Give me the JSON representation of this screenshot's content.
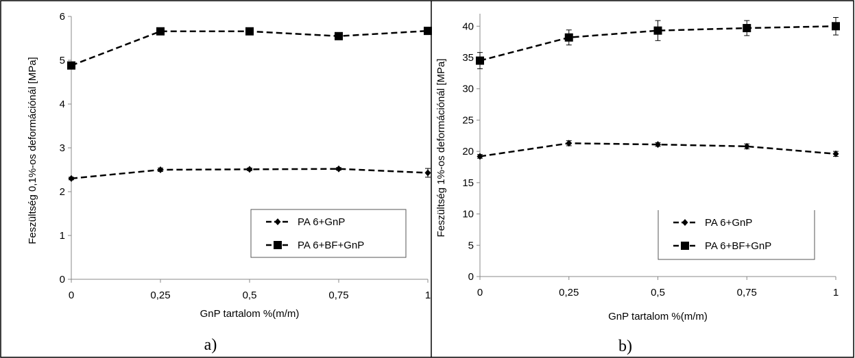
{
  "chart_data": [
    {
      "type": "line",
      "panel_label": "a)",
      "xlabel": "GnP tartalom %(m/m)",
      "ylabel": "Feszültség 0,1%-os deformációnál [MPa]",
      "x": [
        0,
        0.25,
        0.5,
        0.75,
        1
      ],
      "x_tick_labels": [
        "0",
        "0,25",
        "0,5",
        "0,75",
        "1"
      ],
      "y_ticks": [
        "0",
        "1",
        "2",
        "3",
        "4",
        "5",
        "6"
      ],
      "xlim": [
        0,
        1
      ],
      "ylim": [
        0,
        6
      ],
      "grid": false,
      "legend_position": "bottom-right",
      "series": [
        {
          "name": "PA 6+GnP",
          "marker": "diamond",
          "values": [
            2.3,
            2.5,
            2.51,
            2.52,
            2.43
          ],
          "errors": [
            0.03,
            0.04,
            0.03,
            0.03,
            0.1
          ]
        },
        {
          "name": "PA 6+BF+GnP",
          "marker": "square",
          "values": [
            4.88,
            5.66,
            5.66,
            5.55,
            5.67
          ],
          "errors": [
            0.05,
            0.03,
            0.03,
            0.04,
            0.04
          ]
        }
      ]
    },
    {
      "type": "line",
      "panel_label": "b)",
      "xlabel": "GnP tartalom %(m/m)",
      "ylabel": "Feszültség 1%-os deformációnál [MPa]",
      "x": [
        0,
        0.25,
        0.5,
        0.75,
        1
      ],
      "x_tick_labels": [
        "0",
        "0,25",
        "0,5",
        "0,75",
        "1"
      ],
      "y_ticks": [
        "0",
        "5",
        "10",
        "15",
        "20",
        "25",
        "30",
        "35",
        "40"
      ],
      "xlim": [
        0,
        1
      ],
      "ylim": [
        0,
        42
      ],
      "grid": false,
      "legend_position": "bottom-right",
      "series": [
        {
          "name": "PA 6+GnP",
          "marker": "diamond",
          "values": [
            19.2,
            21.3,
            21.1,
            20.8,
            19.6
          ],
          "errors": [
            0.3,
            0.4,
            0.3,
            0.4,
            0.4
          ]
        },
        {
          "name": "PA 6+BF+GnP",
          "marker": "square",
          "values": [
            34.5,
            38.2,
            39.3,
            39.7,
            40.0
          ],
          "errors": [
            1.3,
            1.2,
            1.6,
            1.2,
            1.4
          ]
        }
      ]
    }
  ]
}
